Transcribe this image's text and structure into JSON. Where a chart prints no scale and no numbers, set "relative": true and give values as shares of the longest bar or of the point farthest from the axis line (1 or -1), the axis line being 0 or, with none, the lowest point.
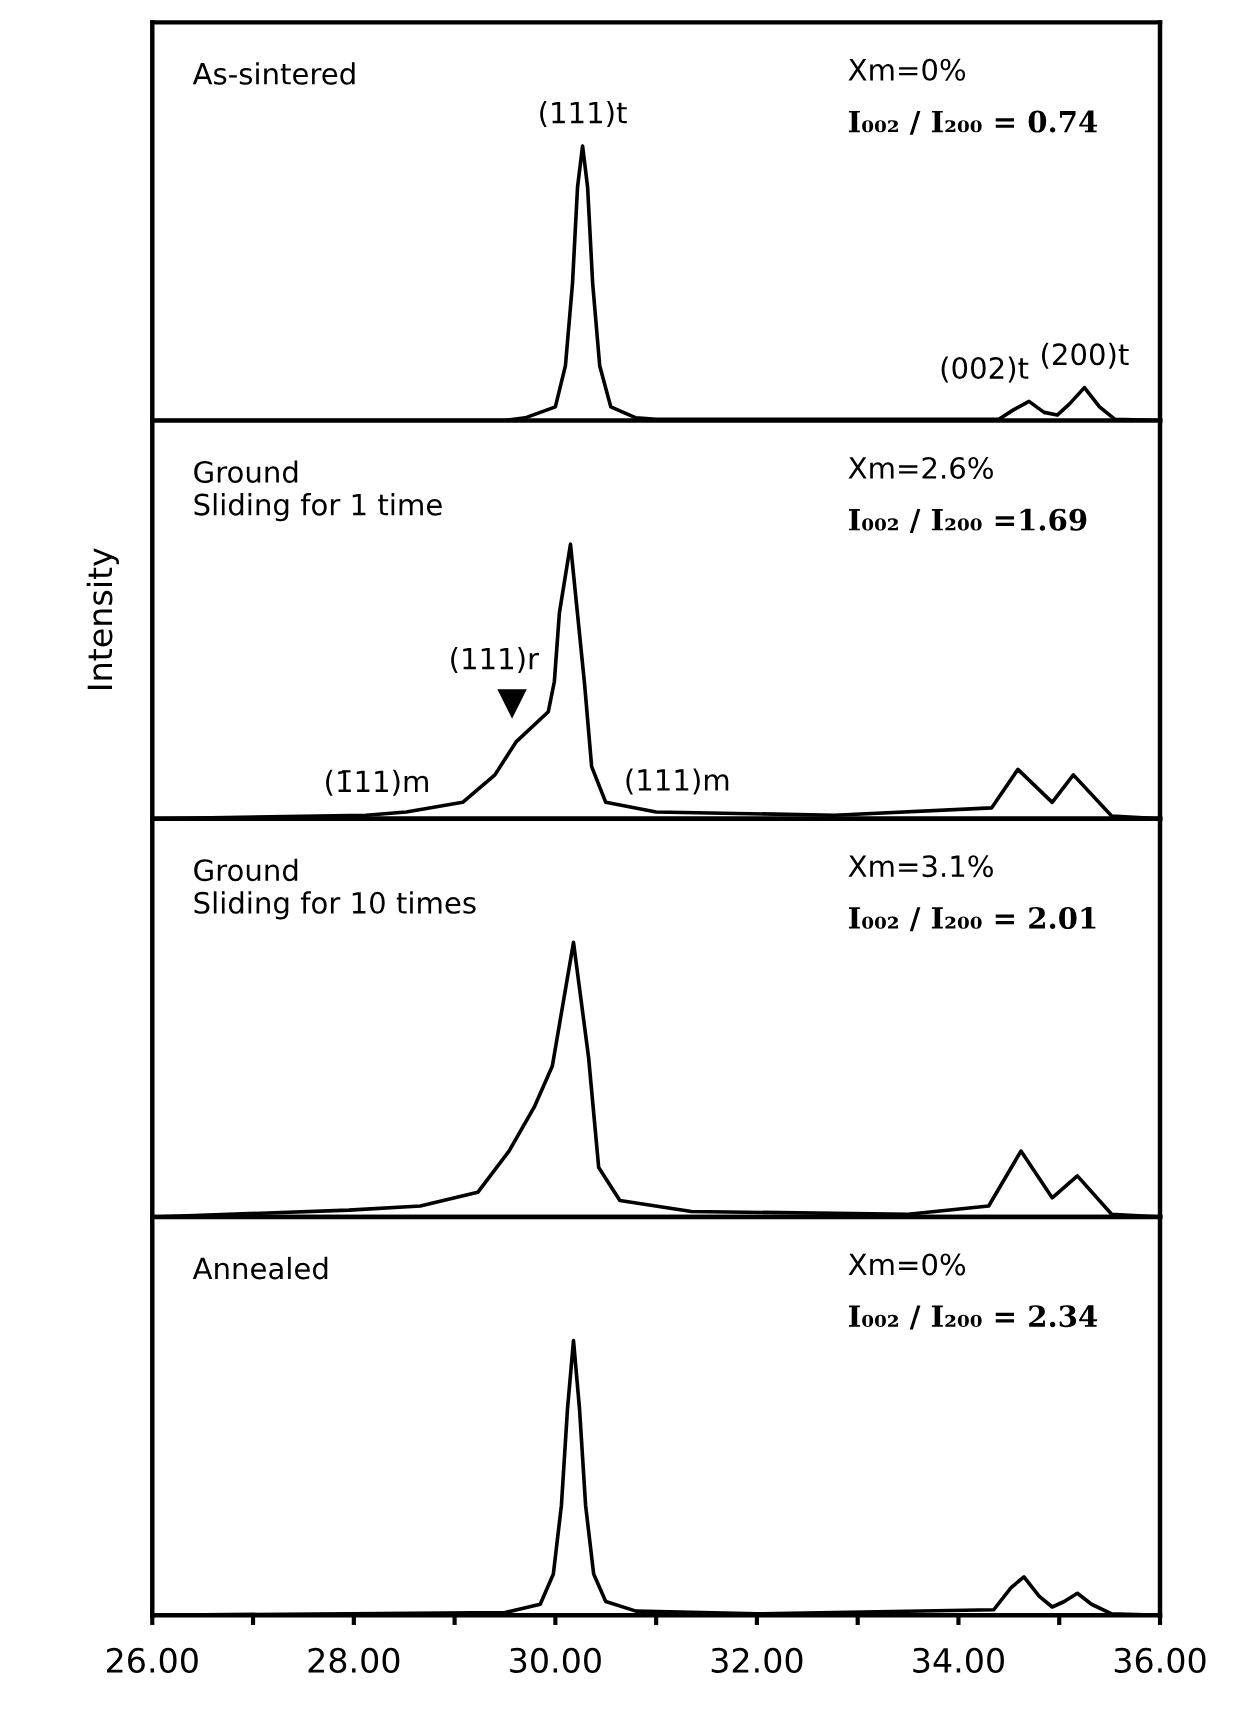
{
  "chart_data": [
    {
      "type": "line",
      "relative": true,
      "xlim": [
        26,
        36
      ],
      "tick_labels": false,
      "x": [
        26,
        29.5,
        29.7,
        30.0,
        30.1,
        30.17,
        30.22,
        30.27,
        30.32,
        30.37,
        30.44,
        30.55,
        30.8,
        31,
        34.4,
        34.55,
        34.7,
        34.85,
        34.98,
        35.1,
        35.25,
        35.4,
        35.55,
        36
      ],
      "series": [
        {
          "color": "#000000",
          "values": [
            0,
            0,
            0.01,
            0.05,
            0.2,
            0.5,
            0.85,
            1,
            0.85,
            0.5,
            0.2,
            0.05,
            0.01,
            0.005,
            0.005,
            0.04,
            0.07,
            0.03,
            0.02,
            0.06,
            0.12,
            0.05,
            0.005,
            0
          ]
        }
      ],
      "annotations": [
        "As-sintered",
        "Xm=0%",
        "I₀₀₂ / I₂₀₀ = 0.74",
        {
          "text": "(111)t",
          "x": 30.27,
          "y": 1
        },
        {
          "text": "(002)t",
          "x": 34.7,
          "y": 0.07
        },
        {
          "text": "(200)t",
          "x": 35.25,
          "y": 0.12
        }
      ]
    },
    {
      "type": "line",
      "relative": true,
      "xlim": [
        26,
        36
      ],
      "tick_labels": false,
      "ylabel": "Intensity",
      "x": [
        26,
        28.12,
        28.52,
        29.08,
        29.4,
        29.61,
        29.93,
        29.99,
        30.04,
        30.15,
        30.29,
        30.36,
        30.5,
        31,
        32.77,
        34.33,
        34.59,
        34.93,
        35.14,
        35.52,
        36
      ],
      "series": [
        {
          "color": "#000000",
          "values": [
            0,
            0.013,
            0.025,
            0.06,
            0.16,
            0.28,
            0.39,
            0.5,
            0.75,
            1,
            0.49,
            0.19,
            0.06,
            0.025,
            0.013,
            0.04,
            0.18,
            0.06,
            0.16,
            0.01,
            0
          ]
        }
      ],
      "annotations": [
        "Ground\nSliding for 1 time",
        "Xm=2.6%",
        "I₀₀₂ / I₂₀₀ =1.69",
        {
          "text": "(111)r",
          "x": 29.61,
          "y": 0.28
        },
        {
          "text": "(1̄11)m",
          "x": 28.23,
          "y": 0.015
        },
        {
          "text": "(111)m",
          "x": 31.21,
          "y": 0.02
        }
      ]
    },
    {
      "type": "line",
      "relative": true,
      "xlim": [
        26,
        36
      ],
      "tick_labels": false,
      "x": [
        26,
        27.95,
        28.66,
        29.23,
        29.54,
        29.79,
        29.97,
        30.18,
        30.33,
        30.43,
        30.64,
        31.35,
        33.5,
        34.3,
        34.62,
        34.93,
        35.18,
        35.52,
        36
      ],
      "series": [
        {
          "color": "#000000",
          "values": [
            0,
            0.025,
            0.04,
            0.09,
            0.24,
            0.4,
            0.55,
            1,
            0.58,
            0.18,
            0.06,
            0.02,
            0.01,
            0.04,
            0.24,
            0.07,
            0.15,
            0.01,
            0
          ]
        }
      ],
      "annotations": [
        "Ground\nSliding for 10 times",
        "Xm=3.1%",
        "I₀₀₂ / I₂₀₀ = 2.01"
      ]
    },
    {
      "type": "line",
      "relative": true,
      "xlim": [
        26,
        36
      ],
      "xticks": [
        {
          "value": 26,
          "label": "26.00"
        },
        {
          "value": 27,
          "label": null
        },
        {
          "value": 28,
          "label": "28.00"
        },
        {
          "value": 29,
          "label": null
        },
        {
          "value": 30,
          "label": "30.00"
        },
        {
          "value": 31,
          "label": null
        },
        {
          "value": 32,
          "label": "32.00"
        },
        {
          "value": 33,
          "label": null
        },
        {
          "value": 34,
          "label": "34.00"
        },
        {
          "value": 35,
          "label": null
        },
        {
          "value": 36,
          "label": "36.00"
        }
      ],
      "x": [
        26,
        29.5,
        29.85,
        29.98,
        30.06,
        30.12,
        30.18,
        30.24,
        30.3,
        30.38,
        30.5,
        30.8,
        32,
        34.35,
        34.52,
        34.65,
        34.8,
        34.93,
        35.05,
        35.18,
        35.32,
        35.52,
        36
      ],
      "series": [
        {
          "color": "#000000",
          "values": [
            0,
            0.01,
            0.04,
            0.15,
            0.4,
            0.75,
            1,
            0.75,
            0.4,
            0.15,
            0.05,
            0.015,
            0.005,
            0.02,
            0.1,
            0.14,
            0.07,
            0.03,
            0.05,
            0.08,
            0.04,
            0.005,
            0
          ]
        }
      ],
      "annotations": [
        "Annealed",
        "Xm=0%",
        "I₀₀₂ / I₂₀₀ = 2.34"
      ]
    }
  ]
}
